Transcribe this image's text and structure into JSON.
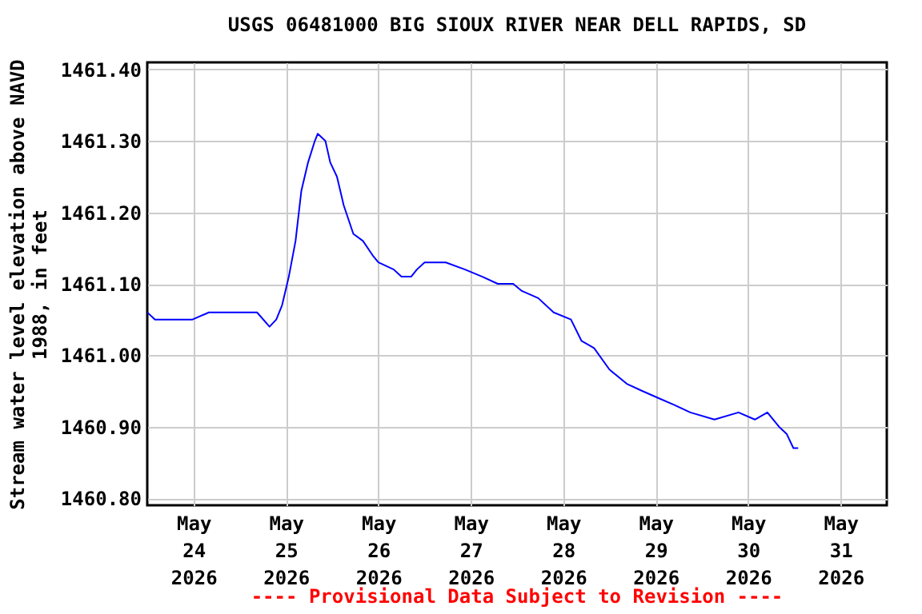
{
  "chart_data": {
    "type": "line",
    "title": "USGS 06481000 BIG SIOUX RIVER NEAR DELL RAPIDS, SD",
    "ylabel": "Stream water level elevation above NAVD 1988, in feet",
    "annotations": [
      "---- Provisional Data Subject to Revision ----"
    ],
    "x": [
      "2026-05-23T12:00",
      "2026-05-23T14:00",
      "2026-05-23T23:45",
      "2026-05-24T04:00",
      "2026-05-24T12:15",
      "2026-05-24T16:30",
      "2026-05-24T19:45",
      "2026-05-24T21:30",
      "2026-05-24T23:00",
      "2026-05-25T00:45",
      "2026-05-25T02:30",
      "2026-05-25T04:00",
      "2026-05-25T05:45",
      "2026-05-25T07:30",
      "2026-05-25T08:15",
      "2026-05-25T10:15",
      "2026-05-25T11:30",
      "2026-05-25T13:15",
      "2026-05-25T15:00",
      "2026-05-25T17:30",
      "2026-05-25T20:00",
      "2026-05-25T22:30",
      "2026-05-26T00:00",
      "2026-05-26T04:00",
      "2026-05-26T06:00",
      "2026-05-26T08:30",
      "2026-05-26T10:00",
      "2026-05-26T12:00",
      "2026-05-26T17:30",
      "2026-05-26T22:30",
      "2026-05-27T03:00",
      "2026-05-27T07:00",
      "2026-05-27T11:00",
      "2026-05-27T13:15",
      "2026-05-27T17:30",
      "2026-05-27T21:30",
      "2026-05-28T02:00",
      "2026-05-28T04:45",
      "2026-05-28T08:00",
      "2026-05-28T12:00",
      "2026-05-28T16:30",
      "2026-05-28T20:30",
      "2026-05-29T00:45",
      "2026-05-29T05:00",
      "2026-05-29T09:00",
      "2026-05-29T15:15",
      "2026-05-29T21:30",
      "2026-05-30T01:45",
      "2026-05-30T05:00",
      "2026-05-30T08:00",
      "2026-05-30T10:00",
      "2026-05-30T11:45",
      "2026-05-30T13:00"
    ],
    "series": [
      {
        "color": "#0000ff",
        "values": [
          1461.06,
          1461.05,
          1461.05,
          1461.06,
          1461.06,
          1461.06,
          1461.04,
          1461.05,
          1461.07,
          1461.11,
          1461.16,
          1461.23,
          1461.27,
          1461.3,
          1461.31,
          1461.3,
          1461.27,
          1461.25,
          1461.21,
          1461.17,
          1461.16,
          1461.14,
          1461.13,
          1461.12,
          1461.11,
          1461.11,
          1461.12,
          1461.13,
          1461.13,
          1461.12,
          1461.11,
          1461.1,
          1461.1,
          1461.09,
          1461.08,
          1461.06,
          1461.05,
          1461.02,
          1461.01,
          1460.98,
          1460.96,
          1460.95,
          1460.94,
          1460.93,
          1460.92,
          1460.91,
          1460.92,
          1460.91,
          1460.92,
          1460.9,
          1460.89,
          1460.87,
          1460.87
        ]
      }
    ],
    "xlim": [
      "2026-05-23T12:00",
      "2026-05-31T12:00"
    ],
    "xticks": [
      {
        "value": "2026-05-24",
        "label": "May\n24\n2026"
      },
      {
        "value": "2026-05-25",
        "label": "May\n25\n2026"
      },
      {
        "value": "2026-05-26",
        "label": "May\n26\n2026"
      },
      {
        "value": "2026-05-27",
        "label": "May\n27\n2026"
      },
      {
        "value": "2026-05-28",
        "label": "May\n28\n2026"
      },
      {
        "value": "2026-05-29",
        "label": "May\n29\n2026"
      },
      {
        "value": "2026-05-30",
        "label": "May\n30\n2026"
      },
      {
        "value": "2026-05-31",
        "label": "May\n31\n2026"
      }
    ],
    "ylim": [
      1460.79,
      1461.41
    ],
    "yticks": [
      {
        "value": 1460.8,
        "label": "1460.80"
      },
      {
        "value": 1460.9,
        "label": "1460.90"
      },
      {
        "value": 1461.0,
        "label": "1461.00"
      },
      {
        "value": 1461.1,
        "label": "1461.10"
      },
      {
        "value": 1461.2,
        "label": "1461.20"
      },
      {
        "value": 1461.3,
        "label": "1461.30"
      },
      {
        "value": 1461.4,
        "label": "1461.40"
      }
    ],
    "grid": true
  }
}
